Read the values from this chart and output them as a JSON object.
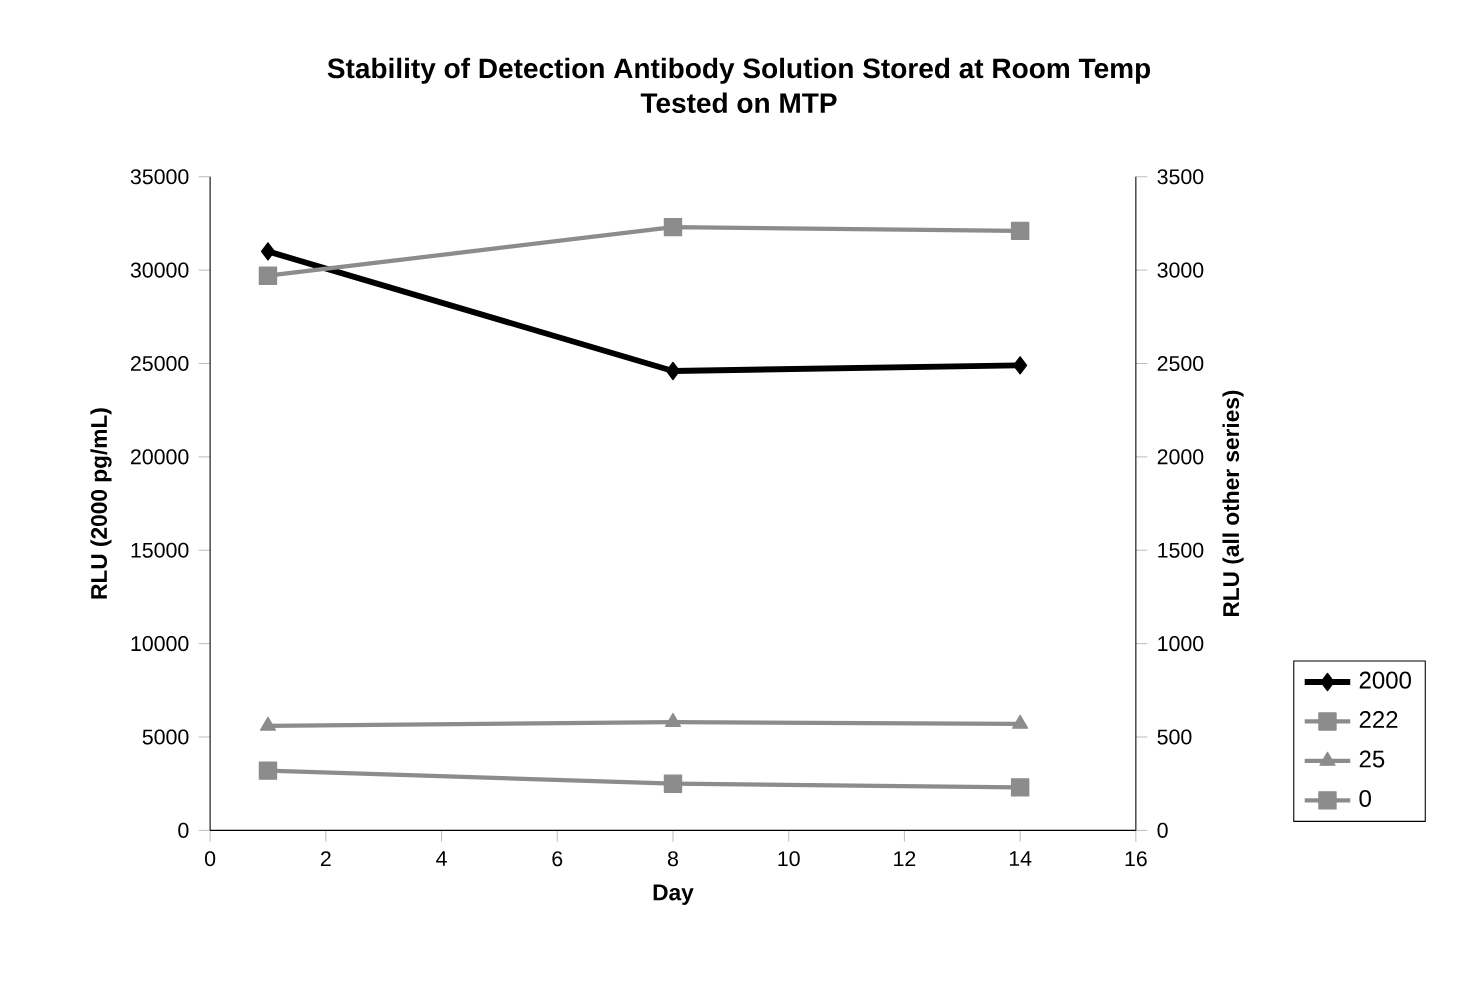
{
  "chart_data": {
    "type": "line",
    "title": "Stability of Detection Antibody Solution Stored at Room Temp",
    "subtitle": "Tested on MTP",
    "xlabel": "Day",
    "ylabel": "RLU (2000 pg/mL)",
    "y2label": "RLU (all other series)",
    "x": [
      1,
      8,
      14
    ],
    "xlim": [
      0,
      16
    ],
    "xticks": [
      0,
      2,
      4,
      6,
      8,
      10,
      12,
      14,
      16
    ],
    "ylim": [
      0,
      35000
    ],
    "yticks": [
      0,
      5000,
      10000,
      15000,
      20000,
      25000,
      30000,
      35000
    ],
    "y2lim": [
      0,
      3500
    ],
    "y2ticks": [
      0,
      500,
      1000,
      1500,
      2000,
      2500,
      3000,
      3500
    ],
    "legend": "right",
    "grid": false,
    "series": [
      {
        "name": "2000",
        "color": "#000000",
        "marker": "diamond",
        "values": [
          31000,
          24600,
          24900
        ]
      },
      {
        "name": "222",
        "color": "#8c8c8c",
        "marker": "square",
        "axis": "y2",
        "values": [
          320,
          250,
          230
        ]
      },
      {
        "name": "25",
        "color": "#8c8c8c",
        "marker": "triangle",
        "axis": "y2",
        "values": [
          560,
          580,
          570
        ]
      },
      {
        "name": "0",
        "color": "#8c8c8c",
        "marker": "square",
        "axis": "y2",
        "values": [
          2970,
          3230,
          3210
        ]
      }
    ]
  }
}
